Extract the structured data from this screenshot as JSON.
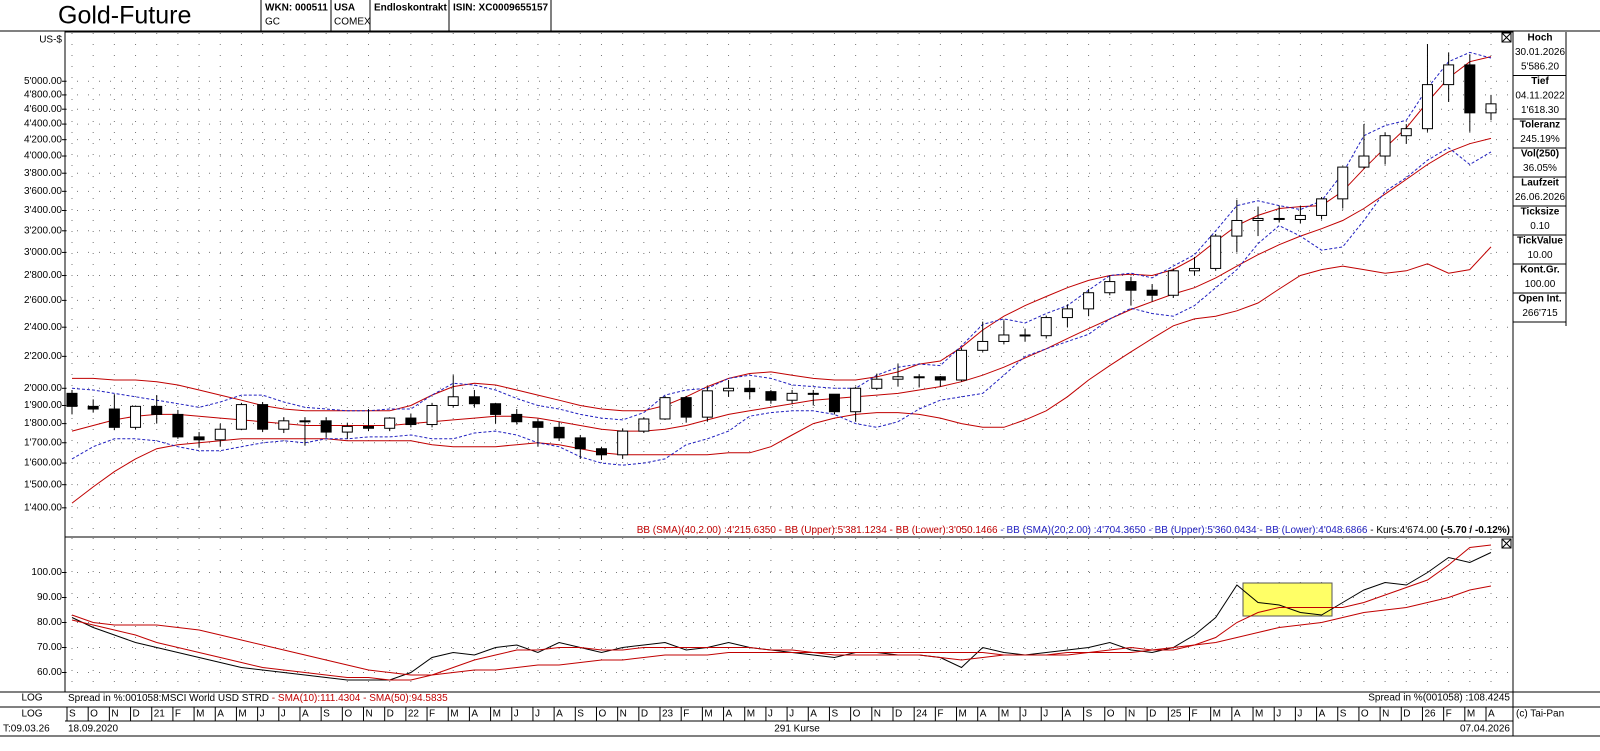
{
  "header": {
    "title": "Gold-Future",
    "wkn": "WKN: 000511",
    "symbol": "GC",
    "country": "USA",
    "exchange": "COMEX",
    "contract": "Endloskontrakt",
    "isin": "ISIN: XC0009655157"
  },
  "sidebar": [
    {
      "label": "Hoch",
      "lines": [
        "30.01.2026",
        "5'586.20"
      ]
    },
    {
      "label": "Tief",
      "lines": [
        "04.11.2022",
        "1'618.30"
      ]
    },
    {
      "label": "Toleranz",
      "lines": [
        "245.19%"
      ]
    },
    {
      "label": "Vol(250)",
      "lines": [
        "36.05%"
      ]
    },
    {
      "label": "Laufzeit",
      "lines": [
        "26.06.2026"
      ]
    },
    {
      "label": "Ticksize",
      "lines": [
        "0.10"
      ]
    },
    {
      "label": "TickValue",
      "lines": [
        "10.00"
      ]
    },
    {
      "label": "Kont.Gr.",
      "lines": [
        "100.00"
      ]
    },
    {
      "label": "Open Int.",
      "lines": [
        "266'715"
      ]
    }
  ],
  "footer": {
    "scale_top": "LOG",
    "scale_bottom": "LOG",
    "time": "T:09.03.26",
    "start": "18.09.2020",
    "count": "291 Kurse",
    "end": "07.04.2026",
    "copyright": "(c) Tai-Pan"
  },
  "chart_data": [
    {
      "type": "candlestick",
      "y_label": "US-$",
      "log_scale": true,
      "grid": true,
      "categories": [
        "S",
        "O",
        "N",
        "D",
        "21",
        "F",
        "M",
        "A",
        "M",
        "J",
        "J",
        "A",
        "S",
        "O",
        "N",
        "D",
        "22",
        "F",
        "M",
        "A",
        "M",
        "J",
        "J",
        "A",
        "S",
        "O",
        "N",
        "D",
        "23",
        "F",
        "M",
        "A",
        "M",
        "J",
        "J",
        "A",
        "S",
        "O",
        "N",
        "D",
        "24",
        "F",
        "M",
        "A",
        "M",
        "J",
        "J",
        "A",
        "S",
        "O",
        "N",
        "D",
        "25",
        "F",
        "M",
        "A",
        "M",
        "J",
        "J",
        "A",
        "S",
        "O",
        "N",
        "D",
        "26",
        "F",
        "M",
        "A"
      ],
      "open": [
        1970,
        1895,
        1880,
        1780,
        1895,
        1850,
        1730,
        1715,
        1770,
        1905,
        1770,
        1815,
        1815,
        1755,
        1785,
        1775,
        1830,
        1795,
        1900,
        1950,
        1910,
        1850,
        1810,
        1780,
        1725,
        1670,
        1640,
        1760,
        1825,
        1945,
        1835,
        1985,
        2000,
        1980,
        1930,
        1970,
        1965,
        1865,
        2000,
        2055,
        2070,
        2070,
        2050,
        2240,
        2300,
        2345,
        2340,
        2470,
        2535,
        2660,
        2750,
        2680,
        2640,
        2840,
        2860,
        3150,
        3300,
        3320,
        3310,
        3350,
        3520,
        3870,
        4000,
        4250,
        4340,
        4950,
        5250,
        4550
      ],
      "high": [
        1990,
        1935,
        1965,
        1900,
        1960,
        1875,
        1755,
        1800,
        1915,
        1920,
        1835,
        1835,
        1835,
        1805,
        1880,
        1835,
        1855,
        1915,
        2080,
        1990,
        1915,
        1880,
        1825,
        1810,
        1740,
        1680,
        1775,
        1835,
        1955,
        1955,
        2010,
        2050,
        2050,
        1990,
        1990,
        1990,
        1955,
        2010,
        2090,
        2150,
        2085,
        2075,
        2255,
        2440,
        2450,
        2390,
        2485,
        2570,
        2690,
        2800,
        2790,
        2730,
        2860,
        2960,
        3170,
        3510,
        3440,
        3450,
        3450,
        3540,
        3880,
        4400,
        4290,
        4400,
        5586,
        5450,
        5420,
        4800
      ],
      "low": [
        1850,
        1860,
        1765,
        1770,
        1800,
        1720,
        1675,
        1680,
        1765,
        1755,
        1750,
        1685,
        1725,
        1720,
        1760,
        1760,
        1780,
        1780,
        1890,
        1890,
        1800,
        1795,
        1680,
        1710,
        1620,
        1615,
        1620,
        1750,
        1820,
        1805,
        1810,
        1950,
        1935,
        1910,
        1910,
        1900,
        1850,
        1810,
        1990,
        2010,
        2005,
        2010,
        2040,
        2230,
        2280,
        2300,
        2320,
        2400,
        2480,
        2640,
        2560,
        2590,
        2620,
        2800,
        2840,
        3000,
        3150,
        3280,
        3270,
        3310,
        3420,
        3850,
        3900,
        4150,
        4300,
        4700,
        4300,
        4450
      ],
      "close": [
        1895,
        1880,
        1780,
        1895,
        1850,
        1730,
        1715,
        1770,
        1905,
        1770,
        1815,
        1815,
        1755,
        1785,
        1775,
        1830,
        1795,
        1900,
        1950,
        1910,
        1850,
        1810,
        1780,
        1725,
        1670,
        1640,
        1760,
        1825,
        1945,
        1835,
        1985,
        2000,
        1980,
        1930,
        1970,
        1965,
        1865,
        2000,
        2055,
        2070,
        2070,
        2050,
        2240,
        2300,
        2345,
        2340,
        2470,
        2535,
        2660,
        2750,
        2680,
        2640,
        2840,
        2860,
        3150,
        3300,
        3320,
        3310,
        3350,
        3520,
        3870,
        4000,
        4250,
        4340,
        4950,
        5250,
        4550,
        4674
      ],
      "series": [
        {
          "color": "#c00000",
          "style": "solid",
          "values": [
            1760,
            1790,
            1820,
            1840,
            1850,
            1850,
            1840,
            1830,
            1820,
            1810,
            1800,
            1790,
            1790,
            1790,
            1790,
            1790,
            1800,
            1810,
            1820,
            1830,
            1840,
            1840,
            1830,
            1810,
            1790,
            1770,
            1760,
            1760,
            1770,
            1790,
            1820,
            1850,
            1870,
            1890,
            1910,
            1930,
            1940,
            1950,
            1960,
            1970,
            1990,
            2010,
            2040,
            2080,
            2130,
            2190,
            2250,
            2320,
            2390,
            2460,
            2530,
            2590,
            2650,
            2700,
            2780,
            2880,
            2980,
            3070,
            3150,
            3220,
            3300,
            3420,
            3570,
            3730,
            3900,
            4050,
            4150,
            4216
          ]
        },
        {
          "color": "#c00000",
          "style": "solid",
          "values": [
            2060,
            2060,
            2050,
            2050,
            2040,
            2020,
            1990,
            1960,
            1930,
            1900,
            1880,
            1870,
            1870,
            1870,
            1870,
            1870,
            1900,
            1960,
            2010,
            2030,
            2020,
            1990,
            1960,
            1930,
            1900,
            1880,
            1870,
            1870,
            1900,
            1950,
            2010,
            2060,
            2090,
            2100,
            2080,
            2060,
            2050,
            2050,
            2070,
            2100,
            2150,
            2170,
            2260,
            2380,
            2480,
            2560,
            2630,
            2700,
            2760,
            2800,
            2810,
            2800,
            2850,
            2950,
            3100,
            3250,
            3350,
            3420,
            3440,
            3450,
            3600,
            3850,
            4100,
            4350,
            4700,
            5050,
            5300,
            5381
          ]
        },
        {
          "color": "#c00000",
          "style": "solid",
          "values": [
            1420,
            1490,
            1560,
            1620,
            1670,
            1690,
            1700,
            1710,
            1720,
            1720,
            1720,
            1720,
            1720,
            1710,
            1710,
            1710,
            1710,
            1690,
            1680,
            1680,
            1680,
            1690,
            1700,
            1690,
            1670,
            1650,
            1640,
            1640,
            1640,
            1640,
            1640,
            1650,
            1650,
            1680,
            1740,
            1800,
            1830,
            1850,
            1860,
            1860,
            1850,
            1830,
            1800,
            1780,
            1780,
            1820,
            1870,
            1950,
            2050,
            2140,
            2230,
            2320,
            2410,
            2460,
            2480,
            2520,
            2580,
            2690,
            2800,
            2850,
            2880,
            2850,
            2820,
            2840,
            2900,
            2820,
            2850,
            3050
          ]
        },
        {
          "color": "#2020c0",
          "style": "dashed",
          "values": [
            2000,
            1990,
            1970,
            1950,
            1930,
            1910,
            1890,
            1920,
            1960,
            1960,
            1920,
            1890,
            1880,
            1870,
            1870,
            1880,
            1880,
            1960,
            2030,
            2020,
            1990,
            1940,
            1900,
            1880,
            1850,
            1830,
            1820,
            1860,
            1960,
            1990,
            2000,
            2060,
            2080,
            2060,
            2020,
            2010,
            2000,
            2000,
            2080,
            2130,
            2150,
            2140,
            2270,
            2420,
            2460,
            2430,
            2500,
            2560,
            2680,
            2800,
            2820,
            2780,
            2880,
            2980,
            3200,
            3450,
            3500,
            3450,
            3410,
            3500,
            3800,
            4250,
            4380,
            4450,
            4900,
            5300,
            5450,
            5360
          ]
        },
        {
          "color": "#2020c0",
          "style": "dashed",
          "values": [
            1620,
            1680,
            1720,
            1720,
            1710,
            1680,
            1660,
            1660,
            1680,
            1700,
            1710,
            1700,
            1720,
            1720,
            1730,
            1730,
            1740,
            1720,
            1720,
            1750,
            1760,
            1740,
            1700,
            1680,
            1630,
            1600,
            1590,
            1600,
            1620,
            1690,
            1720,
            1760,
            1840,
            1860,
            1870,
            1870,
            1850,
            1800,
            1780,
            1810,
            1880,
            1930,
            1950,
            1970,
            2080,
            2200,
            2250,
            2300,
            2350,
            2460,
            2540,
            2500,
            2480,
            2560,
            2700,
            2850,
            3080,
            3250,
            3150,
            3020,
            3050,
            3300,
            3600,
            3750,
            3950,
            4100,
            3900,
            4049
          ]
        }
      ],
      "legend": [
        {
          "text": "BB (SMA)(40,2.00) :4'215.6350 - BB (Upper):5'381.1234 - BB (Lower):3'050.1466",
          "color": "#c00000",
          "bold": false
        },
        {
          "text": " - BB (SMA)(20,2.00) :4'704.3650 - BB (Upper):5'360.0434 - BB (Lower):4'048.6866",
          "color": "#2020c0",
          "bold": false
        },
        {
          "text": " - Kurs:4'674.00 ",
          "color": "#000000",
          "bold": false
        },
        {
          "text": "(-5.70 / -0.12%)",
          "color": "#000000",
          "bold": true
        }
      ],
      "ylim": [
        1350,
        5740
      ],
      "yticks": [
        {
          "value": 1400,
          "label": "1'400.00"
        },
        {
          "value": 1500,
          "label": "1'500.00"
        },
        {
          "value": 1600,
          "label": "1'600.00"
        },
        {
          "value": 1700,
          "label": "1'700.00"
        },
        {
          "value": 1800,
          "label": "1'800.00"
        },
        {
          "value": 1900,
          "label": "1'900.00"
        },
        {
          "value": 2000,
          "label": "2'000.00"
        },
        {
          "value": 2200,
          "label": "2'200.00"
        },
        {
          "value": 2400,
          "label": "2'400.00"
        },
        {
          "value": 2600,
          "label": "2'600.00"
        },
        {
          "value": 2800,
          "label": "2'800.00"
        },
        {
          "value": 3000,
          "label": "3'000.00"
        },
        {
          "value": 3200,
          "label": "3'200.00"
        },
        {
          "value": 3400,
          "label": "3'400.00"
        },
        {
          "value": 3600,
          "label": "3'600.00"
        },
        {
          "value": 3800,
          "label": "3'800.00"
        },
        {
          "value": 4000,
          "label": "4'000.00"
        },
        {
          "value": 4200,
          "label": "4'200.00"
        },
        {
          "value": 4400,
          "label": "4'400.00"
        },
        {
          "value": 4600,
          "label": "4'600.00"
        },
        {
          "value": 4800,
          "label": "4'800.00"
        },
        {
          "value": 5000,
          "label": "5'000.00"
        }
      ]
    },
    {
      "type": "line",
      "grid": true,
      "series": [
        {
          "color": "#000000",
          "values": [
            82,
            78,
            75,
            72,
            70,
            68,
            66,
            64,
            62,
            61,
            60,
            59,
            58,
            57,
            57,
            57,
            60,
            66,
            68,
            67,
            70,
            71,
            68,
            72,
            70,
            68,
            70,
            71,
            72,
            69,
            70,
            72,
            70,
            69,
            68,
            67,
            66,
            68,
            68,
            67,
            67,
            66,
            62,
            70,
            68,
            67,
            68,
            69,
            70,
            72,
            69,
            68,
            70,
            75,
            82,
            95,
            88,
            87,
            84,
            83,
            88,
            93,
            96,
            95,
            100,
            106,
            104,
            108
          ]
        },
        {
          "color": "#c00000",
          "values": [
            81,
            79,
            77,
            75,
            72,
            70,
            68,
            66,
            64,
            62,
            61,
            60,
            59,
            58,
            58,
            57,
            57,
            59,
            62,
            65,
            67,
            69,
            69,
            70,
            70,
            69,
            69,
            70,
            70,
            70,
            70,
            70,
            70,
            69,
            69,
            68,
            67,
            67,
            67,
            67,
            67,
            66,
            65,
            66,
            67,
            67,
            67,
            68,
            68,
            69,
            70,
            69,
            69,
            71,
            74,
            80,
            84,
            86,
            86,
            86,
            86,
            88,
            91,
            94,
            97,
            103,
            110,
            111
          ]
        },
        {
          "color": "#c00000",
          "values": [
            83,
            80,
            79,
            79,
            79,
            78,
            77,
            75,
            73,
            71,
            69,
            67,
            65,
            63,
            61,
            60,
            59,
            59,
            60,
            61,
            61,
            62,
            63,
            63,
            64,
            65,
            65,
            66,
            67,
            67,
            67,
            68,
            68,
            68,
            68,
            68,
            68,
            68,
            68,
            68,
            68,
            68,
            68,
            68,
            67,
            67,
            67,
            67,
            68,
            68,
            68,
            69,
            70,
            71,
            72,
            74,
            76,
            78,
            79,
            80,
            82,
            84,
            85,
            86,
            88,
            90,
            93,
            94.6
          ]
        }
      ],
      "legend": [
        {
          "text": "Spread in %:001058:MSCI World USD STRD",
          "color": "#000000"
        },
        {
          "text": " - SMA(10):111.4304 - SMA(50):94.5835",
          "color": "#c00000"
        }
      ],
      "legend_right": "Spread in %(001058) :108.4245",
      "ylim": [
        53,
        113
      ],
      "yticks": [
        {
          "value": 60,
          "label": "60.00"
        },
        {
          "value": 70,
          "label": "70.00"
        },
        {
          "value": 80,
          "label": "80.00"
        },
        {
          "value": 90,
          "label": "90.00"
        },
        {
          "value": 100,
          "label": "100.00"
        }
      ]
    }
  ]
}
